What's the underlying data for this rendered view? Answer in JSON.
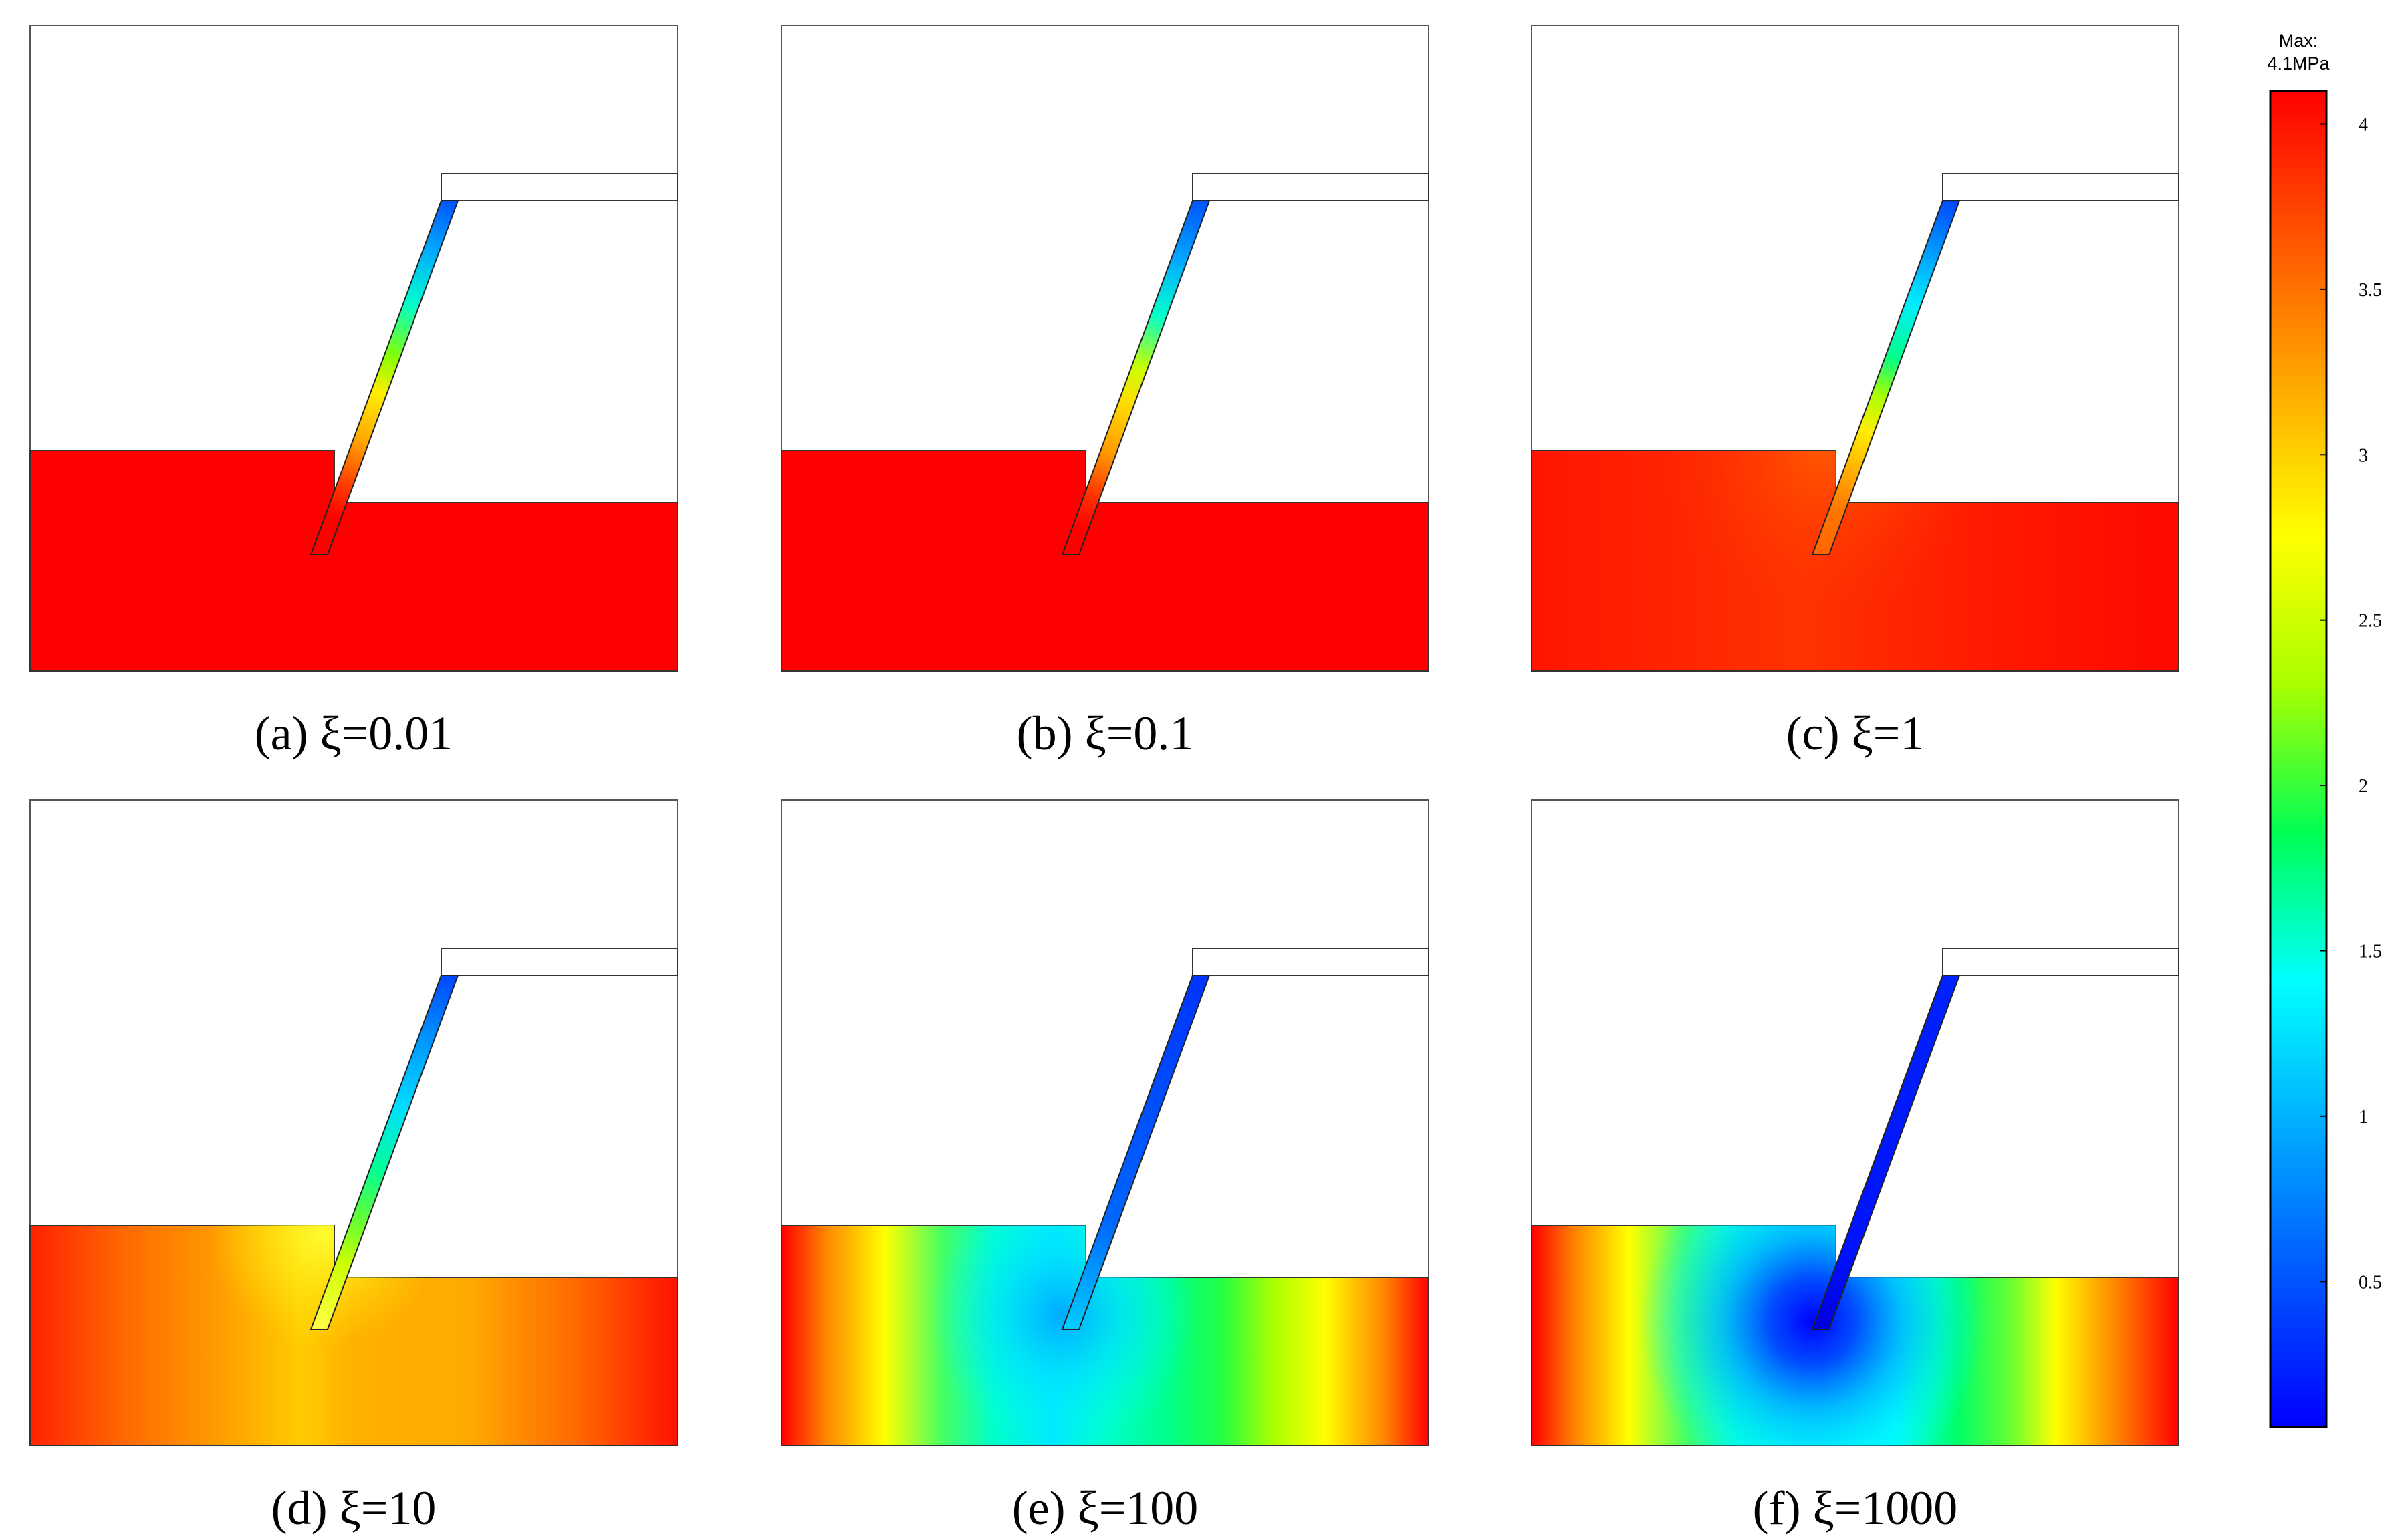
{
  "panels": [
    {
      "caption": "(a) ξ=0.01",
      "xi": 0.01
    },
    {
      "caption": "(b) ξ=0.1",
      "xi": 0.1
    },
    {
      "caption": "(c) ξ=1",
      "xi": 1
    },
    {
      "caption": "(d) ξ=10",
      "xi": 10
    },
    {
      "caption": "(e) ξ=100",
      "xi": 100
    },
    {
      "caption": "(f) ξ=1000",
      "xi": 1000
    }
  ],
  "colorbar": {
    "max_label_line1": "Max:",
    "max_label_line2": "4.1MPa",
    "max": 4.1,
    "min": 0.06,
    "ticks": [
      "4",
      "3.5",
      "3",
      "2.5",
      "2",
      "1.5",
      "1",
      "0.5"
    ],
    "colormap": [
      "#0000ff",
      "#0055ff",
      "#00aaff",
      "#00ffff",
      "#00ff55",
      "#aaff00",
      "#ffff00",
      "#ffaa00",
      "#ff5500",
      "#ff0000"
    ]
  }
}
